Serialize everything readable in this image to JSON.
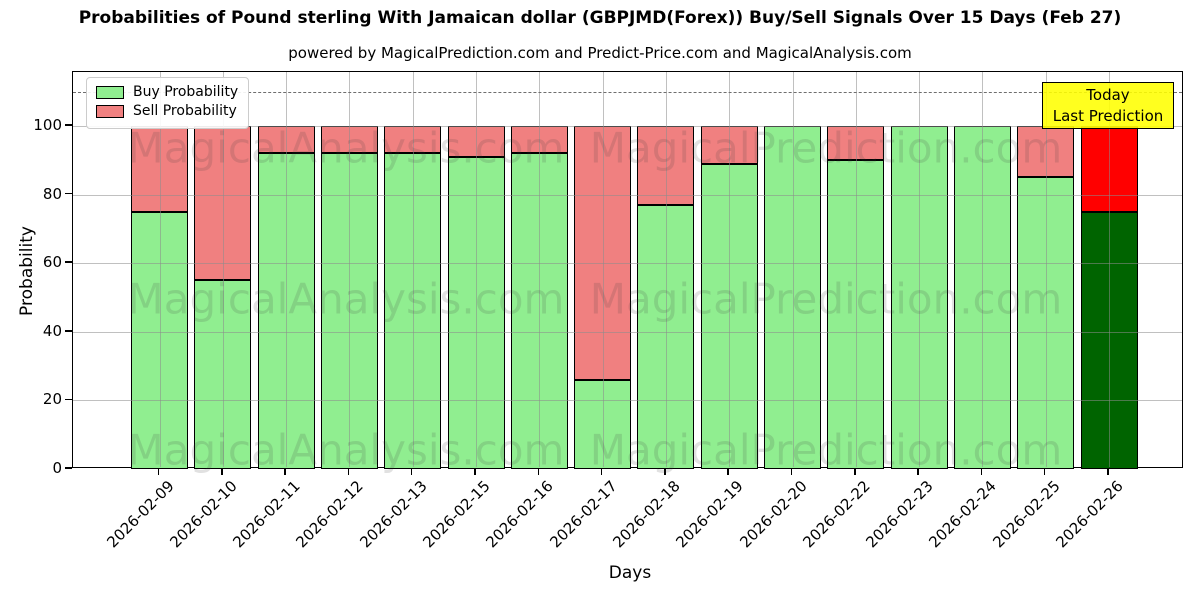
{
  "title": "Probabilities of Pound sterling With Jamaican dollar (GBPJMD(Forex)) Buy/Sell Signals Over 15 Days (Feb 27)",
  "subtitle": "powered by MagicalPrediction.com and Predict-Price.com and MagicalAnalysis.com",
  "legend": {
    "buy_label": "Buy Probability",
    "sell_label": "Sell Probability"
  },
  "annotation_box": {
    "line1": "Today",
    "line2": "Last Prediction"
  },
  "watermarks": {
    "left_text": "MagicalAnalysis.com",
    "right_text": "MagicalPrediction.com"
  },
  "colors": {
    "buy": "#90EE90",
    "sell": "#F08080",
    "today_buy": "#006400",
    "today_sell": "#FF0000",
    "annotation_bg": "#FFFF00",
    "watermark": "#3C3C3C",
    "grid": "#8C8C8C"
  },
  "chart_data": {
    "type": "bar",
    "stacked": true,
    "title": "Probabilities of Pound sterling With Jamaican dollar (GBPJMD(Forex)) Buy/Sell Signals Over 15 Days (Feb 27)",
    "xlabel": "Days",
    "ylabel": "Probability",
    "ylim": [
      0,
      116
    ],
    "yticks": [
      0,
      20,
      40,
      60,
      80,
      100
    ],
    "dashed_line_y": 110,
    "grid": true,
    "legend_position": "upper left",
    "categories": [
      "2026-02-09",
      "2026-02-10",
      "2026-02-11",
      "2026-02-12",
      "2026-02-13",
      "2026-02-15",
      "2026-02-16",
      "2026-02-17",
      "2026-02-18",
      "2026-02-19",
      "2026-02-20",
      "2026-02-22",
      "2026-02-23",
      "2026-02-24",
      "2026-02-25",
      "2026-02-26"
    ],
    "series": [
      {
        "name": "Buy Probability",
        "color": "#90EE90",
        "values": [
          75,
          55,
          92,
          92,
          92,
          91,
          92,
          26,
          77,
          89,
          100,
          90,
          100,
          100,
          85,
          75
        ]
      },
      {
        "name": "Sell Probability",
        "color": "#F08080",
        "values": [
          25,
          45,
          8,
          8,
          8,
          9,
          8,
          74,
          23,
          11,
          0,
          10,
          0,
          0,
          15,
          25
        ]
      }
    ],
    "today_bar": {
      "category": "2026-02-26",
      "index": 15,
      "buy_color": "#006400",
      "sell_color": "#FF0000",
      "label": "Today Last Prediction"
    }
  }
}
